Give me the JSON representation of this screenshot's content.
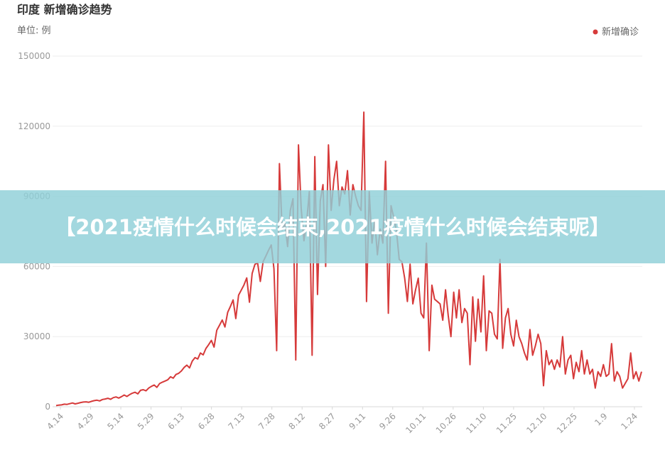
{
  "chart_data": {
    "type": "line",
    "title": "印度 新增确诊趋势",
    "unit_label": "单位: 例",
    "legend": {
      "entries": [
        "新增确诊"
      ],
      "position": "top-right"
    },
    "series": [
      {
        "name": "新增确诊",
        "color": "#d63a3a",
        "values": [
          500,
          700,
          800,
          1100,
          1000,
          1300,
          1600,
          1200,
          1500,
          1800,
          2000,
          2100,
          1900,
          2300,
          2600,
          2800,
          2500,
          3100,
          3300,
          3600,
          3200,
          3900,
          4200,
          3700,
          4300,
          5000,
          4400,
          5200,
          5800,
          6200,
          5500,
          7000,
          7300,
          6800,
          8000,
          8700,
          9300,
          8300,
          9900,
          10500,
          11000,
          11500,
          12800,
          12200,
          13800,
          14300,
          15300,
          16800,
          17800,
          16600,
          19500,
          21000,
          20400,
          23000,
          22200,
          24900,
          26500,
          28400,
          25500,
          32700,
          34900,
          37100,
          34100,
          40400,
          42900,
          45700,
          37700,
          47700,
          49900,
          52100,
          55100,
          44700,
          57000,
          60900,
          61500,
          53600,
          62000,
          64400,
          66900,
          69200,
          59000,
          24000,
          104000,
          75700,
          78500,
          68500,
          84000,
          89000,
          20000,
          112000,
          85000,
          71000,
          79000,
          92000,
          22000,
          107000,
          48000,
          88000,
          95000,
          60000,
          112000,
          84000,
          97000,
          105000,
          86000,
          94000,
          91000,
          101000,
          82000,
          95000,
          90000,
          86000,
          84000,
          126000,
          45000,
          92000,
          70000,
          80000,
          65000,
          76000,
          70000,
          105000,
          40000,
          86000,
          81000,
          75000,
          63000,
          62000,
          55000,
          45000,
          61000,
          44000,
          50000,
          55000,
          40000,
          38000,
          70000,
          24000,
          52000,
          46000,
          45000,
          44000,
          37000,
          50000,
          39000,
          30000,
          49000,
          38000,
          50000,
          36000,
          42000,
          40000,
          18000,
          47000,
          28000,
          46000,
          32000,
          56000,
          24000,
          41000,
          40000,
          31000,
          29000,
          63000,
          25000,
          38000,
          42000,
          31000,
          26000,
          37000,
          30000,
          27000,
          23000,
          20000,
          33000,
          22000,
          26000,
          31000,
          27000,
          9000,
          24000,
          18000,
          20000,
          16000,
          20000,
          17000,
          30000,
          14000,
          20000,
          22000,
          12000,
          19000,
          15000,
          24000,
          14000,
          20000,
          14000,
          16000,
          8000,
          15000,
          13000,
          18000,
          13000,
          14000,
          27000,
          11000,
          15000,
          13000,
          8000,
          10000,
          12000,
          23000,
          12000,
          15000,
          11000,
          15000
        ]
      }
    ],
    "x_ticks": [
      "4.14",
      "4.29",
      "5.14",
      "5.29",
      "6.13",
      "6.28",
      "7.13",
      "7.28",
      "8.12",
      "8.27",
      "9.11",
      "9.26",
      "10.11",
      "10.26",
      "11.10",
      "11.25",
      "12.10",
      "12.25",
      "1.9",
      "1.24"
    ],
    "y_ticks": [
      "0",
      "30000",
      "60000",
      "90000",
      "120000",
      "150000"
    ],
    "ylim": [
      0,
      150000
    ],
    "grid": "horizontal"
  },
  "overlay": {
    "banner_text": "【2021疫情什么时候会结束,2021疫情什么时候会结束呢】"
  }
}
